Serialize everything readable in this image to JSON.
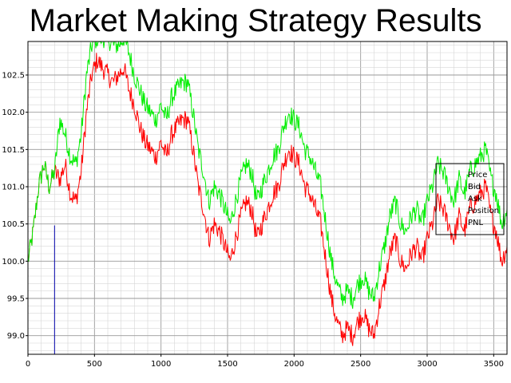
{
  "chart_data": {
    "type": "line",
    "title": "Market Making Strategy Results",
    "xlim": [
      0,
      3600
    ],
    "ylim": [
      98.75,
      102.95
    ],
    "x_ticks": [
      0,
      500,
      1000,
      1500,
      2000,
      2500,
      3000,
      3500
    ],
    "y_ticks": [
      99.0,
      99.5,
      100.0,
      100.5,
      101.0,
      101.5,
      102.0,
      102.5
    ],
    "grid": true,
    "legend_position": "center-right",
    "legend": [
      "Price",
      "Bid",
      "Ask",
      "Position",
      "PNL"
    ],
    "colors": {
      "bid": "#ff0000",
      "ask": "#00ee00",
      "position": "#0000aa"
    },
    "series": [
      {
        "name": "Bid",
        "x": [
          0,
          40,
          80,
          120,
          160,
          200,
          240,
          280,
          320,
          360,
          400,
          440,
          480,
          520,
          560,
          600,
          640,
          680,
          720,
          760,
          800,
          840,
          880,
          920,
          960,
          1000,
          1040,
          1080,
          1120,
          1160,
          1200,
          1240,
          1280,
          1320,
          1360,
          1400,
          1440,
          1480,
          1520,
          1560,
          1600,
          1640,
          1680,
          1720,
          1760,
          1800,
          1840,
          1880,
          1920,
          1960,
          2000,
          2040,
          2080,
          2120,
          2160,
          2200,
          2240,
          2280,
          2320,
          2360,
          2400,
          2440,
          2480,
          2520,
          2560,
          2600,
          2640,
          2680,
          2720,
          2760,
          2800,
          2840,
          2880,
          2920,
          2960,
          3000,
          3040,
          3080,
          3120,
          3160,
          3200,
          3240,
          3280,
          3320,
          3360,
          3400,
          3440,
          3480,
          3520,
          3560,
          3600
        ],
        "values": [
          100.0,
          100.4,
          101.0,
          101.3,
          101.0,
          101.2,
          101.1,
          101.3,
          100.9,
          100.8,
          101.2,
          102.0,
          102.5,
          102.7,
          102.6,
          102.5,
          102.4,
          102.5,
          102.6,
          102.3,
          102.1,
          101.8,
          101.6,
          101.5,
          101.4,
          101.6,
          101.4,
          101.7,
          101.8,
          101.9,
          101.9,
          101.5,
          101.0,
          100.7,
          100.3,
          100.5,
          100.4,
          100.2,
          100.0,
          100.3,
          100.6,
          100.8,
          100.7,
          100.3,
          100.5,
          100.7,
          100.9,
          101.0,
          101.3,
          101.5,
          101.4,
          101.3,
          101.0,
          100.9,
          100.7,
          100.5,
          100.0,
          99.5,
          99.2,
          99.0,
          99.1,
          99.0,
          99.2,
          99.3,
          99.1,
          99.0,
          99.4,
          99.7,
          100.1,
          100.3,
          100.0,
          99.9,
          100.1,
          100.2,
          100.0,
          100.3,
          100.5,
          100.8,
          100.7,
          100.5,
          100.3,
          100.6,
          100.4,
          100.7,
          100.8,
          100.9,
          101.0,
          100.6,
          100.4,
          100.0,
          100.2
        ]
      },
      {
        "name": "Ask",
        "x": [
          0,
          40,
          80,
          120,
          160,
          200,
          240,
          280,
          320,
          360,
          400,
          440,
          480,
          520,
          560,
          600,
          640,
          680,
          720,
          760,
          800,
          840,
          880,
          920,
          960,
          1000,
          1040,
          1080,
          1120,
          1160,
          1200,
          1240,
          1280,
          1320,
          1360,
          1400,
          1440,
          1480,
          1520,
          1560,
          1600,
          1640,
          1680,
          1720,
          1760,
          1800,
          1840,
          1880,
          1920,
          1960,
          2000,
          2040,
          2080,
          2120,
          2160,
          2200,
          2240,
          2280,
          2320,
          2360,
          2400,
          2440,
          2480,
          2520,
          2560,
          2600,
          2640,
          2680,
          2720,
          2760,
          2800,
          2840,
          2880,
          2920,
          2960,
          3000,
          3040,
          3080,
          3120,
          3160,
          3200,
          3240,
          3280,
          3320,
          3360,
          3400,
          3440,
          3480,
          3520,
          3560,
          3600
        ],
        "values": [
          100.0,
          100.4,
          101.0,
          101.3,
          101.0,
          101.2,
          101.9,
          101.7,
          101.4,
          101.3,
          101.7,
          102.5,
          102.9,
          103.0,
          103.0,
          103.0,
          102.9,
          102.9,
          103.0,
          102.8,
          102.5,
          102.3,
          102.1,
          102.0,
          101.9,
          102.1,
          101.9,
          102.2,
          102.3,
          102.4,
          102.4,
          102.0,
          101.5,
          101.2,
          100.8,
          101.0,
          100.9,
          100.7,
          100.5,
          100.8,
          101.1,
          101.3,
          101.2,
          100.8,
          101.0,
          101.2,
          101.4,
          101.5,
          101.8,
          102.0,
          101.9,
          101.8,
          101.5,
          101.4,
          101.2,
          101.0,
          100.5,
          100.0,
          99.7,
          99.5,
          99.6,
          99.5,
          99.7,
          99.8,
          99.6,
          99.5,
          99.9,
          100.2,
          100.6,
          100.8,
          100.5,
          100.4,
          100.6,
          100.7,
          100.5,
          100.8,
          101.0,
          101.3,
          101.2,
          101.0,
          100.8,
          101.1,
          100.9,
          101.2,
          101.3,
          101.4,
          101.5,
          101.1,
          100.9,
          100.5,
          100.7
        ]
      },
      {
        "name": "Position",
        "x": [
          200,
          200
        ],
        "values": [
          98.75,
          100.48
        ]
      }
    ]
  }
}
